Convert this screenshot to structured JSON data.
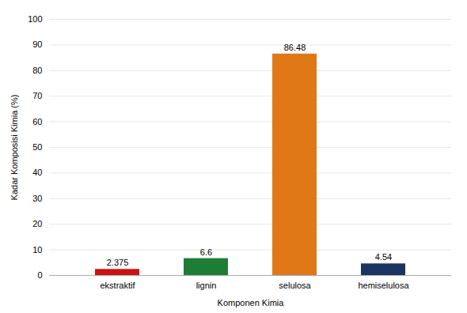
{
  "chart_data": {
    "type": "bar",
    "categories": [
      "ekstraktif",
      "lignin",
      "selulosa",
      "hemiselulosa"
    ],
    "values": [
      2.375,
      6.6,
      86.48,
      4.54
    ],
    "colors": [
      "#cc1111",
      "#1e7d34",
      "#e07818",
      "#1c3461"
    ],
    "xlabel": "Komponen Kimia",
    "ylabel": "Kadar Komposisi Kimia (%)",
    "ylim": [
      0,
      100
    ],
    "yticks": [
      0,
      10,
      20,
      30,
      40,
      50,
      60,
      70,
      80,
      90,
      100
    ],
    "grid": true,
    "data_labels": true
  }
}
